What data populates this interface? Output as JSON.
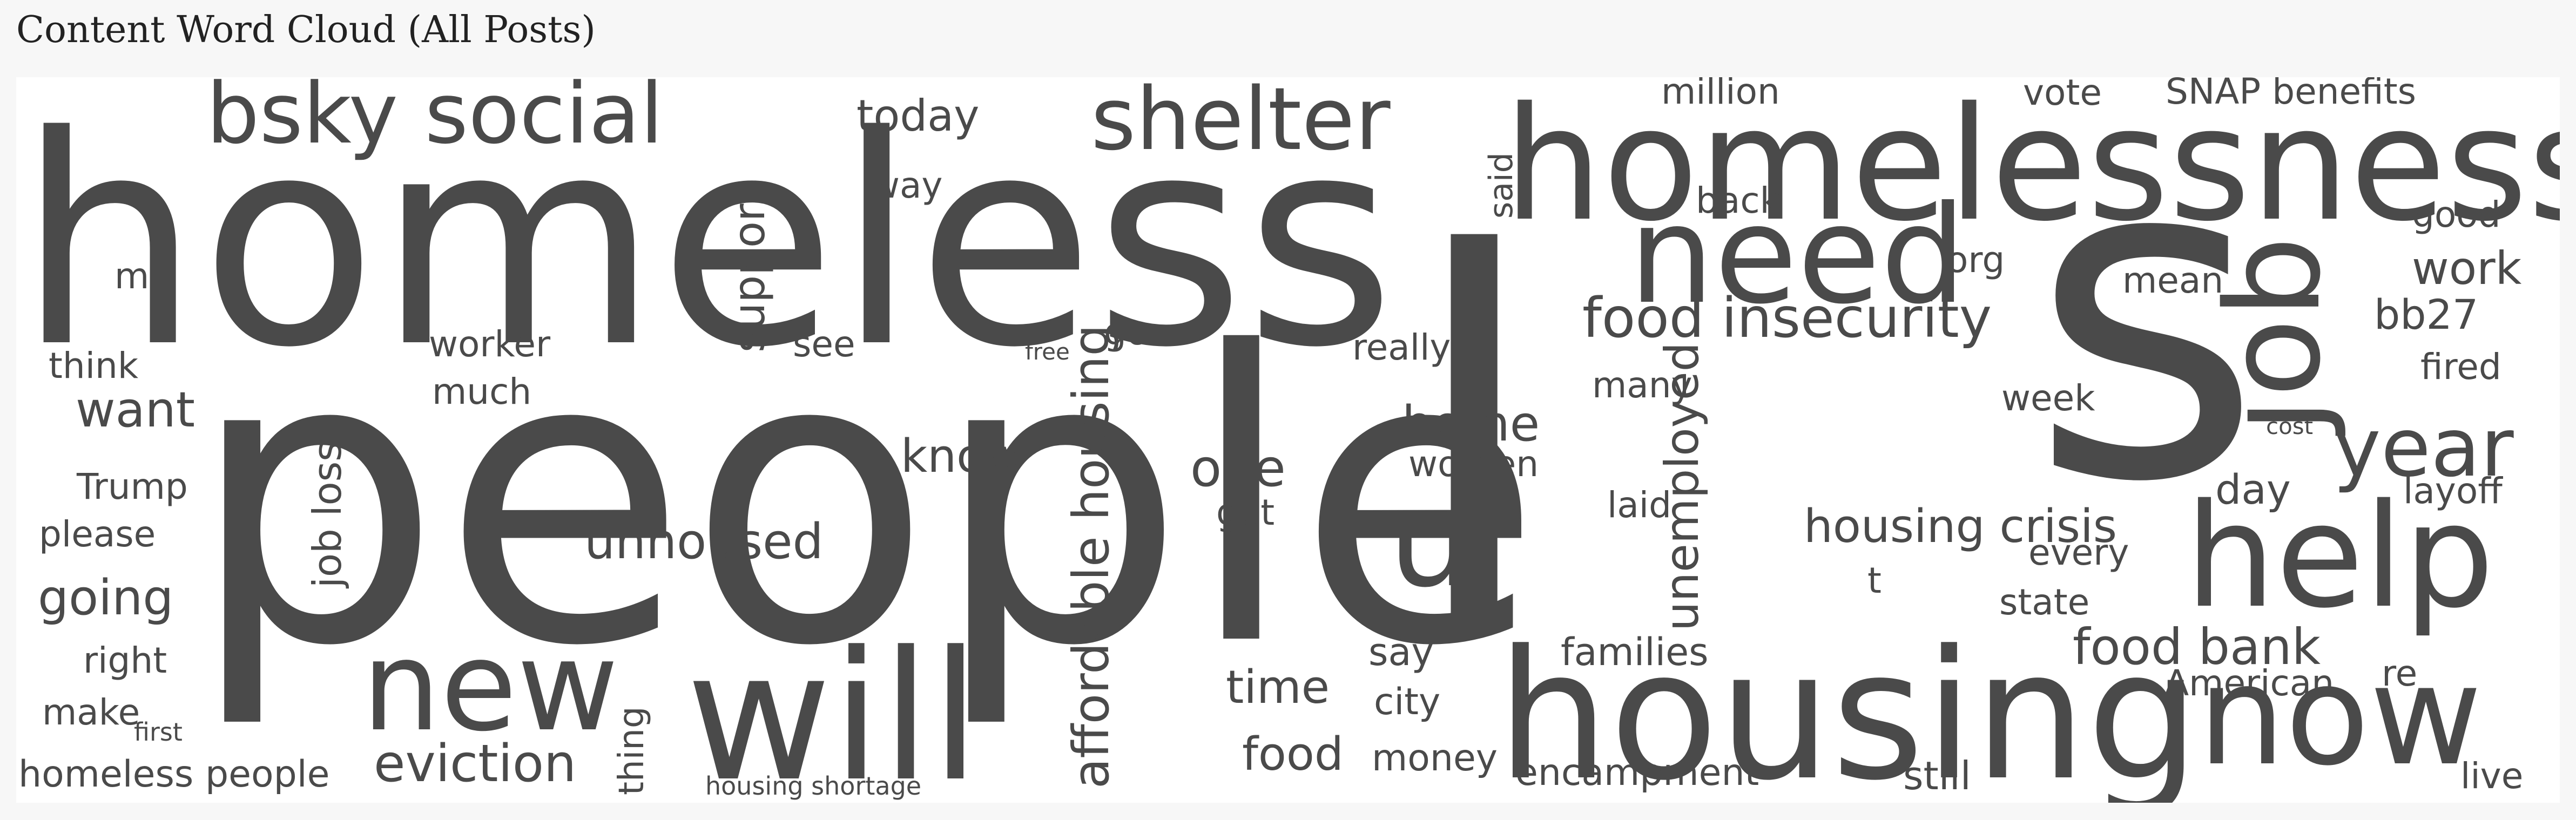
{
  "title": "Content Word Cloud (All Posts)",
  "cloud": {
    "text_color": "#4a4a4a",
    "background": "#ffffff",
    "words": {
      "people": "people",
      "s": "s",
      "l": "l",
      "homeless": "homeless",
      "homelessness": "homelessness",
      "housing": "housing",
      "need": "need",
      "help": "help",
      "now": "now",
      "will": "will",
      "new": "new",
      "job": "job",
      "shelter": "shelter",
      "bsky_social": "bsky social",
      "u": "u",
      "year": "year",
      "affordable_housing": "affordable housing",
      "food_insecurity": "food insecurity",
      "unhoused": "unhoused",
      "eviction": "eviction",
      "food_bank": "food bank",
      "housing_crisis": "housing crisis",
      "unemployed": "unemployed",
      "support": "support",
      "home": "home",
      "one": "one",
      "know": "know",
      "job_loss": "job loss",
      "today": "today",
      "work": "work",
      "want": "want",
      "going": "going",
      "time": "time",
      "food": "food",
      "encampment": "encampment",
      "families": "families",
      "city": "city",
      "money": "money",
      "say": "say",
      "still": "still",
      "day": "day",
      "bb27": "bb27",
      "million": "million",
      "vote": "vote",
      "snap_benefits": "SNAP benefits",
      "back": "back",
      "good": "good",
      "org": "org",
      "mean": "mean",
      "fired": "fired",
      "week": "week",
      "layoff": "layoff",
      "cost": "cost",
      "every": "every",
      "state": "state",
      "american": "American",
      "re": "re",
      "live": "live",
      "t": "t",
      "laid": "laid",
      "many": "many",
      "women": "women",
      "really": "really",
      "got": "got",
      "said": "said",
      "go": "go",
      "see": "see",
      "free": "free",
      "way": "way",
      "worker": "worker",
      "much": "much",
      "thing": "thing",
      "housing_shortage": "housing shortage",
      "homeless_people": "homeless people",
      "first": "first",
      "make": "make",
      "right": "right",
      "please": "please",
      "trump": "Trump",
      "think": "think",
      "m": "m"
    }
  }
}
